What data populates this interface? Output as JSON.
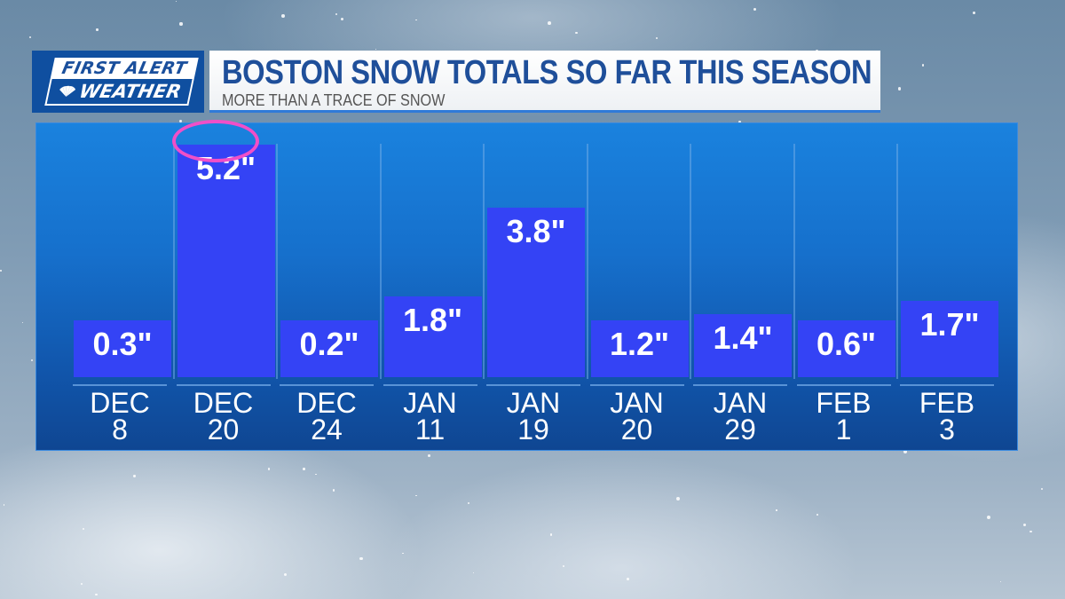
{
  "logo": {
    "line1": "FIRST ALERT",
    "line2": "WEATHER",
    "icon": "nbc-peacock-icon"
  },
  "header": {
    "title": "BOSTON SNOW TOTALS SO FAR THIS SEASON",
    "subtitle": "MORE THAN A TRACE OF SNOW"
  },
  "colors": {
    "bar": "#3443f5",
    "panel": "#1670cc",
    "highlight_ring": "#f04fc8",
    "title": "#1f4f9a"
  },
  "bars": [
    {
      "month": "DEC",
      "day": "8",
      "label": "0.3\"",
      "value": 0.3
    },
    {
      "month": "DEC",
      "day": "20",
      "label": "5.2\"",
      "value": 5.2,
      "highlighted": true
    },
    {
      "month": "DEC",
      "day": "24",
      "label": "0.2\"",
      "value": 0.2
    },
    {
      "month": "JAN",
      "day": "11",
      "label": "1.8\"",
      "value": 1.8
    },
    {
      "month": "JAN",
      "day": "19",
      "label": "3.8\"",
      "value": 3.8
    },
    {
      "month": "JAN",
      "day": "20",
      "label": "1.2\"",
      "value": 1.2
    },
    {
      "month": "JAN",
      "day": "29",
      "label": "1.4\"",
      "value": 1.4
    },
    {
      "month": "FEB",
      "day": "1",
      "label": "0.6\"",
      "value": 0.6
    },
    {
      "month": "FEB",
      "day": "3",
      "label": "1.7\"",
      "value": 1.7
    }
  ],
  "chart_data": {
    "type": "bar",
    "title": "BOSTON SNOW TOTALS SO FAR THIS SEASON",
    "subtitle": "MORE THAN A TRACE OF SNOW",
    "categories": [
      "DEC 8",
      "DEC 20",
      "DEC 24",
      "JAN 11",
      "JAN 19",
      "JAN 20",
      "JAN 29",
      "FEB 1",
      "FEB 3"
    ],
    "values": [
      0.3,
      5.2,
      0.2,
      1.8,
      3.8,
      1.2,
      1.4,
      0.6,
      1.7
    ],
    "data_labels": [
      "0.3\"",
      "5.2\"",
      "0.2\"",
      "1.8\"",
      "3.8\"",
      "1.2\"",
      "1.4\"",
      "0.6\"",
      "1.7\""
    ],
    "units": "inches",
    "xlabel": "",
    "ylabel": "",
    "grid": false,
    "legend": null,
    "annotations": [
      {
        "type": "circle",
        "target": "DEC 20",
        "color": "#f04fc8"
      }
    ]
  }
}
